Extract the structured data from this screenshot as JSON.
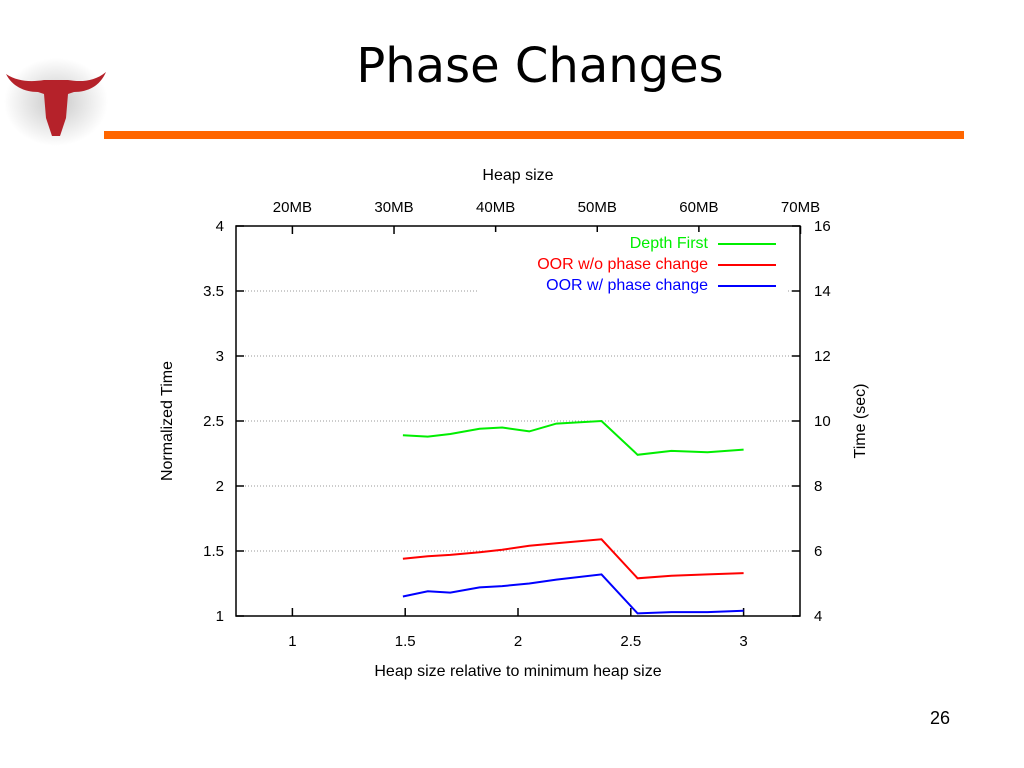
{
  "slide": {
    "title": "Phase Changes",
    "number": "26",
    "accent_color": "#ff6600",
    "logo_icon": "longhorn-logo-icon",
    "logo_color": "#b5222a"
  },
  "chart_data": {
    "type": "line",
    "title": "",
    "xlabel": "Heap size relative to minimum heap size",
    "ylabel": "Normalized Time",
    "x2label": "Heap size",
    "y2label": "Time (sec)",
    "xlim": [
      0.75,
      3.25
    ],
    "ylim": [
      1,
      4
    ],
    "y2lim": [
      4,
      16
    ],
    "x_ticks": [
      1,
      1.5,
      2,
      2.5,
      3
    ],
    "x_tick_labels": [
      "1",
      "1.5",
      "2",
      "2.5",
      "3"
    ],
    "y_ticks": [
      1,
      1.5,
      2,
      2.5,
      3,
      3.5,
      4
    ],
    "y_tick_labels": [
      "1",
      "1.5",
      "2",
      "2.5",
      "3",
      "3.5",
      "4"
    ],
    "y2_ticks": [
      4,
      6,
      8,
      10,
      12,
      14,
      16
    ],
    "y2_tick_labels": [
      "4",
      "6",
      "8",
      "10",
      "12",
      "14",
      "16"
    ],
    "x2_ticks": [
      20,
      30,
      40,
      50,
      60,
      70
    ],
    "x2_tick_labels": [
      "20MB",
      "30MB",
      "40MB",
      "50MB",
      "60MB",
      "70MB"
    ],
    "x2_at_x1_equals_1": 20,
    "x2_per_x1_unit": 22.2,
    "grid": true,
    "legend_position": "top-right",
    "series": [
      {
        "name": "Depth First",
        "color": "#00ee00",
        "x": [
          1.49,
          1.6,
          1.7,
          1.83,
          1.93,
          2.05,
          2.17,
          2.37,
          2.53,
          2.68,
          2.84,
          3.0
        ],
        "y": [
          2.39,
          2.38,
          2.4,
          2.44,
          2.45,
          2.42,
          2.48,
          2.5,
          2.24,
          2.27,
          2.26,
          2.28
        ]
      },
      {
        "name": "OOR w/o phase change",
        "color": "#ff0000",
        "x": [
          1.49,
          1.6,
          1.7,
          1.83,
          1.93,
          2.05,
          2.17,
          2.37,
          2.53,
          2.68,
          2.84,
          3.0
        ],
        "y": [
          1.44,
          1.46,
          1.47,
          1.49,
          1.51,
          1.54,
          1.56,
          1.59,
          1.29,
          1.31,
          1.32,
          1.33
        ]
      },
      {
        "name": "OOR w/ phase change",
        "color": "#0000ff",
        "x": [
          1.49,
          1.6,
          1.7,
          1.83,
          1.93,
          2.05,
          2.17,
          2.37,
          2.53,
          2.68,
          2.84,
          3.0
        ],
        "y": [
          1.15,
          1.19,
          1.18,
          1.22,
          1.23,
          1.25,
          1.28,
          1.32,
          1.02,
          1.03,
          1.03,
          1.04
        ]
      }
    ]
  }
}
